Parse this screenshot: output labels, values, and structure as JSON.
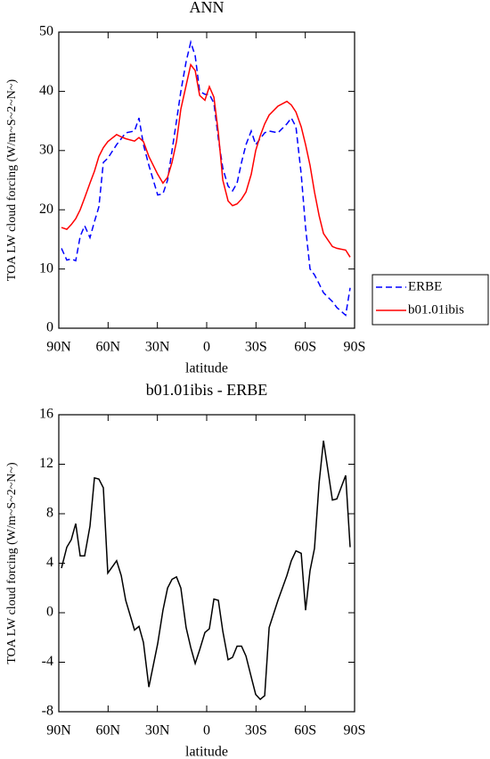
{
  "chart_data": [
    {
      "type": "line",
      "title": "ANN",
      "xlabel": "latitude",
      "ylabel": "TOA LW cloud forcing (W/m~S~2~N~)",
      "x": [
        88.4,
        85.1,
        82.4,
        79.7,
        77,
        74.3,
        71,
        68.3,
        65.6,
        62.9,
        60.2,
        54.8,
        52,
        49.3,
        43.9,
        41.2,
        38.5,
        35.2,
        29.8,
        26.6,
        23.8,
        21.1,
        18.4,
        15.7,
        12.5,
        9.7,
        7,
        4.3,
        1.1,
        -1.6,
        -4.4,
        -7.1,
        -9.8,
        -13,
        -15.7,
        -18.5,
        -21.2,
        -23.9,
        -27.1,
        -29.8,
        -32.6,
        -35.3,
        -38,
        -43.4,
        -48.8,
        -51.5,
        -54.3,
        -57.5,
        -60.2,
        -62.9,
        -65.6,
        -68.4,
        -71.1,
        -76.5,
        -79.2,
        -84.6,
        -87.3
      ],
      "series": [
        {
          "name": "ERBE",
          "color": "#0000ff",
          "line_style": "dashed",
          "values": [
            13.5,
            11.5,
            11.7,
            11.4,
            15.5,
            17.3,
            15.3,
            18,
            20.5,
            28,
            28.7,
            31,
            32,
            33,
            33.3,
            35.5,
            31,
            27.5,
            22.5,
            22.7,
            25,
            30,
            35,
            40,
            45,
            48.3,
            46,
            40,
            39.5,
            39.5,
            38,
            32,
            27,
            24,
            23.2,
            24.5,
            28,
            31,
            33.3,
            31,
            32,
            33,
            33.3,
            33,
            34.5,
            35.5,
            34,
            26,
            17,
            10,
            9,
            7.5,
            6,
            4.5,
            3.5,
            2.2,
            6.8
          ]
        },
        {
          "name": "b01.01ibis",
          "color": "#ff0000",
          "line_style": "solid",
          "values": [
            17,
            16.7,
            17.5,
            18.5,
            20,
            22,
            24.5,
            26.5,
            29,
            30.5,
            31.5,
            32.7,
            32.3,
            32,
            31.6,
            32.2,
            31.5,
            29,
            26,
            24.5,
            25.5,
            28,
            31.5,
            37,
            41,
            44.5,
            43.5,
            39.3,
            38.5,
            40.8,
            39,
            33,
            25,
            21.5,
            20.7,
            21,
            21.8,
            23,
            26,
            30,
            32.5,
            34.5,
            36,
            37.5,
            38.3,
            37.7,
            36.5,
            34,
            31,
            27.5,
            23,
            19,
            16,
            13.8,
            13.5,
            13.2,
            12
          ]
        }
      ],
      "xlim": [
        90,
        -90
      ],
      "xticks": [
        {
          "value": 90,
          "label": "90N"
        },
        {
          "value": 60,
          "label": "60N"
        },
        {
          "value": 30,
          "label": "30N"
        },
        0,
        {
          "value": -30,
          "label": "30S"
        },
        {
          "value": -60,
          "label": "60S"
        },
        {
          "value": -90,
          "label": "90S"
        }
      ],
      "ylim": [
        0,
        50
      ],
      "yticks": [
        0,
        10,
        20,
        30,
        40,
        50
      ],
      "legend": "right"
    },
    {
      "type": "line",
      "title": "b01.01ibis - ERBE",
      "xlabel": "latitude",
      "ylabel": "TOA LW cloud forcing (W/m~S~2~N~)",
      "x": [
        88.4,
        85.1,
        82.4,
        79.7,
        77,
        74.3,
        71,
        68.3,
        65.6,
        62.9,
        60.2,
        54.8,
        52,
        49.3,
        43.9,
        41.2,
        38.5,
        35.2,
        29.8,
        26.6,
        23.8,
        21.1,
        18.4,
        15.7,
        12.5,
        9.7,
        7,
        4.3,
        1.1,
        -1.6,
        -4.4,
        -7.1,
        -9.8,
        -13,
        -15.7,
        -18.5,
        -21.2,
        -23.9,
        -27.1,
        -29.8,
        -32.6,
        -35.3,
        -38,
        -43.4,
        -48.8,
        -51.5,
        -54.3,
        -57.5,
        -60.2,
        -62.9,
        -65.6,
        -68.4,
        -71.1,
        -76.5,
        -79.2,
        -84.6,
        -87.3
      ],
      "color": "#000000",
      "values": [
        3.6,
        5.3,
        5.9,
        7.2,
        4.6,
        4.6,
        7,
        10.9,
        10.8,
        10.1,
        3.2,
        4.2,
        3,
        1,
        -1.4,
        -1.1,
        -2.4,
        -6,
        -2.5,
        0.2,
        2,
        2.7,
        2.9,
        2,
        -1.2,
        -2.8,
        -4.1,
        -3,
        -1.6,
        -1.3,
        1.1,
        1,
        -1.5,
        -3.8,
        -3.6,
        -2.7,
        -2.7,
        -3.5,
        -5.2,
        -6.6,
        -7,
        -6.7,
        -1.2,
        1,
        3,
        4.2,
        5,
        4.8,
        0.2,
        3.4,
        5.2,
        10.5,
        13.9,
        9.1,
        9.2,
        11.1,
        5.3
      ],
      "xlim": [
        90,
        -90
      ],
      "xticks": [
        {
          "value": 90,
          "label": "90N"
        },
        {
          "value": 60,
          "label": "60N"
        },
        {
          "value": 30,
          "label": "30N"
        },
        0,
        {
          "value": -30,
          "label": "30S"
        },
        {
          "value": -60,
          "label": "60S"
        },
        {
          "value": -90,
          "label": "90S"
        }
      ],
      "ylim": [
        -8,
        16
      ],
      "yticks": [
        -8,
        -4,
        0,
        4,
        8,
        12,
        16
      ]
    }
  ]
}
